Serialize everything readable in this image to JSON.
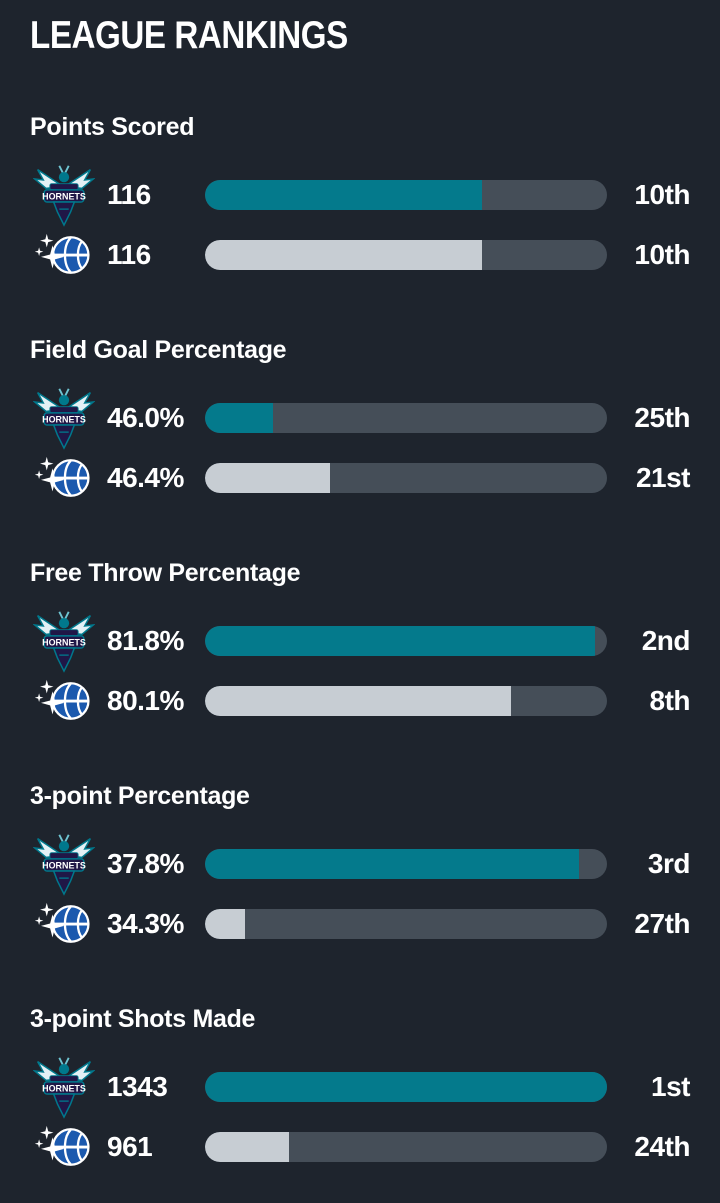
{
  "title": "LEAGUE RANKINGS",
  "colors": {
    "background": "#1e242d",
    "text": "#ffffff",
    "bar_track": "#454e58",
    "hornets_bar": "#047a8c",
    "magic_bar": "#c7cdd3"
  },
  "teams": [
    {
      "id": "hornets",
      "name": "Charlotte Hornets",
      "logo_icon": "hornets-logo",
      "bar_color": "#047a8c"
    },
    {
      "id": "magic",
      "name": "Orlando Magic",
      "logo_icon": "magic-logo",
      "bar_color": "#c7cdd3"
    }
  ],
  "sections": [
    {
      "label": "Points Scored",
      "rows": [
        {
          "team": "hornets",
          "value": "116",
          "rank": "10th",
          "fill_pct": 69
        },
        {
          "team": "magic",
          "value": "116",
          "rank": "10th",
          "fill_pct": 69
        }
      ]
    },
    {
      "label": "Field Goal Percentage",
      "rows": [
        {
          "team": "hornets",
          "value": "46.0%",
          "rank": "25th",
          "fill_pct": 17
        },
        {
          "team": "magic",
          "value": "46.4%",
          "rank": "21st",
          "fill_pct": 31
        }
      ]
    },
    {
      "label": "Free Throw Percentage",
      "rows": [
        {
          "team": "hornets",
          "value": "81.8%",
          "rank": "2nd",
          "fill_pct": 97
        },
        {
          "team": "magic",
          "value": "80.1%",
          "rank": "8th",
          "fill_pct": 76
        }
      ]
    },
    {
      "label": "3-point Percentage",
      "rows": [
        {
          "team": "hornets",
          "value": "37.8%",
          "rank": "3rd",
          "fill_pct": 93
        },
        {
          "team": "magic",
          "value": "34.3%",
          "rank": "27th",
          "fill_pct": 10
        }
      ]
    },
    {
      "label": "3-point Shots Made",
      "rows": [
        {
          "team": "hornets",
          "value": "1343",
          "rank": "1st",
          "fill_pct": 100
        },
        {
          "team": "magic",
          "value": "961",
          "rank": "24th",
          "fill_pct": 21
        }
      ]
    }
  ],
  "chart_data": [
    {
      "type": "bar",
      "title": "Points Scored",
      "categories": [
        "Charlotte Hornets",
        "Orlando Magic"
      ],
      "values": [
        116,
        116
      ],
      "ranks": [
        "10th",
        "10th"
      ],
      "bar_fill_fraction": [
        0.69,
        0.69
      ],
      "note": "bar length encodes league rank out of 30 teams; full bar = 1st"
    },
    {
      "type": "bar",
      "title": "Field Goal Percentage",
      "categories": [
        "Charlotte Hornets",
        "Orlando Magic"
      ],
      "values": [
        46.0,
        46.4
      ],
      "ranks": [
        "25th",
        "21st"
      ],
      "bar_fill_fraction": [
        0.17,
        0.31
      ],
      "note": "values shown as percentages"
    },
    {
      "type": "bar",
      "title": "Free Throw Percentage",
      "categories": [
        "Charlotte Hornets",
        "Orlando Magic"
      ],
      "values": [
        81.8,
        80.1
      ],
      "ranks": [
        "2nd",
        "8th"
      ],
      "bar_fill_fraction": [
        0.97,
        0.76
      ],
      "note": "values shown as percentages"
    },
    {
      "type": "bar",
      "title": "3-point Percentage",
      "categories": [
        "Charlotte Hornets",
        "Orlando Magic"
      ],
      "values": [
        37.8,
        34.3
      ],
      "ranks": [
        "3rd",
        "27th"
      ],
      "bar_fill_fraction": [
        0.93,
        0.1
      ],
      "note": "values shown as percentages"
    },
    {
      "type": "bar",
      "title": "3-point Shots Made",
      "categories": [
        "Charlotte Hornets",
        "Orlando Magic"
      ],
      "values": [
        1343,
        961
      ],
      "ranks": [
        "1st",
        "24th"
      ],
      "bar_fill_fraction": [
        1.0,
        0.21
      ],
      "note": "counts of made three-pointers"
    }
  ]
}
